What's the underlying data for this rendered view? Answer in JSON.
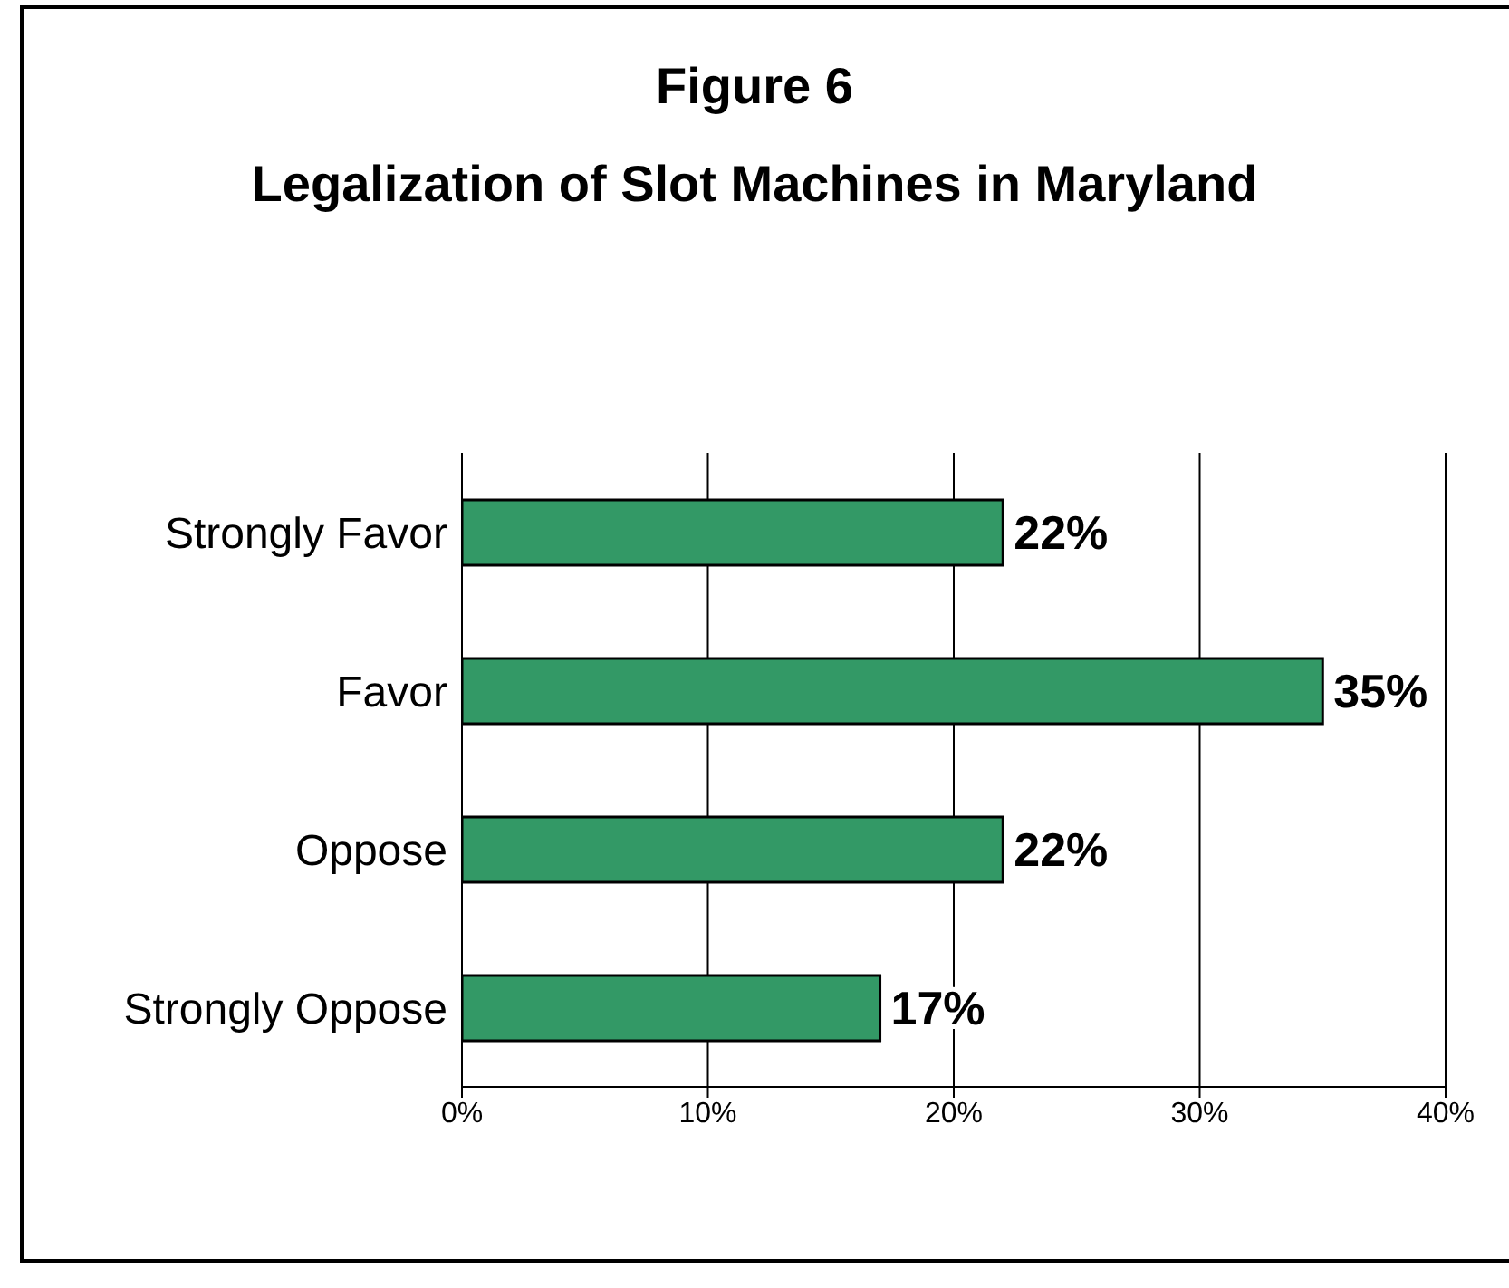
{
  "chart_data": {
    "type": "bar",
    "orientation": "horizontal",
    "title": "Figure 6",
    "subtitle": "Legalization of Slot Machines in Maryland",
    "categories": [
      "Strongly Favor",
      "Favor",
      "Oppose",
      "Strongly Oppose"
    ],
    "values": [
      22,
      35,
      22,
      17
    ],
    "color": "#339966",
    "value_labels": [
      "22%",
      "35%",
      "22%",
      "17%"
    ],
    "xlim": [
      0,
      40
    ],
    "xticks": [
      {
        "value": 0,
        "label": "0%"
      },
      {
        "value": 10,
        "label": "10%"
      },
      {
        "value": 20,
        "label": "20%"
      },
      {
        "value": 30,
        "label": "30%"
      },
      {
        "value": 40,
        "label": "40%"
      }
    ],
    "grid": "x"
  }
}
